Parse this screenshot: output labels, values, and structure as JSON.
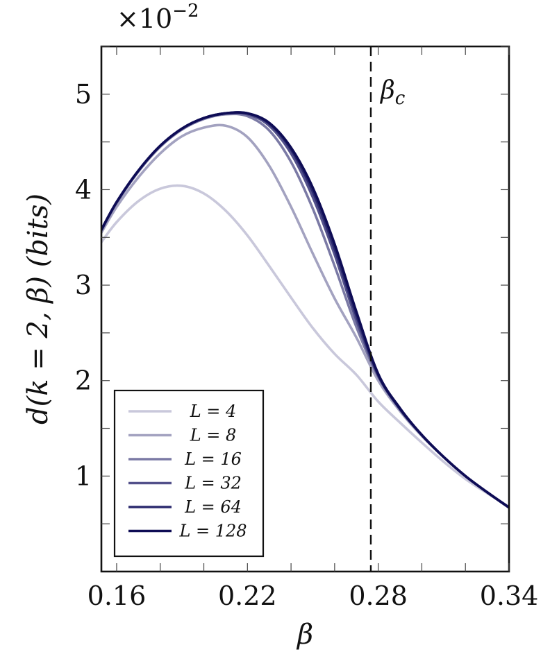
{
  "chart_data": {
    "type": "line",
    "xlabel": "β",
    "ylabel": "d(k = 2, β) (bits)",
    "y_multiplier": {
      "base": "×10",
      "exponent": "−2"
    },
    "xlim": [
      0.153,
      0.34
    ],
    "ylim": [
      0.0,
      5.5
    ],
    "x_ticks": [
      0.16,
      0.22,
      0.28,
      0.34
    ],
    "x_tick_labels": [
      "0.16",
      "0.22",
      "0.28",
      "0.34"
    ],
    "y_ticks": [
      1,
      2,
      3,
      4,
      5
    ],
    "y_tick_labels": [
      "1",
      "2",
      "3",
      "4",
      "5"
    ],
    "grid": false,
    "legend_position": "bottom-left",
    "annotation": {
      "text": "β",
      "subscript": "c",
      "x": 0.2766,
      "style": "dashed-vertical"
    },
    "series": [
      {
        "name": "L = 4",
        "color": "#c9c8db",
        "x": [
          0.153,
          0.16,
          0.17,
          0.18,
          0.19,
          0.2,
          0.21,
          0.22,
          0.23,
          0.24,
          0.25,
          0.26,
          0.27,
          0.28,
          0.29,
          0.3,
          0.31,
          0.32,
          0.33,
          0.34
        ],
        "y": [
          3.45,
          3.66,
          3.88,
          4.01,
          4.04,
          3.96,
          3.78,
          3.52,
          3.2,
          2.87,
          2.55,
          2.28,
          2.06,
          1.78,
          1.56,
          1.35,
          1.15,
          0.97,
          0.82,
          0.68
        ]
      },
      {
        "name": "L = 8",
        "color": "#a3a2c0",
        "x": [
          0.153,
          0.16,
          0.17,
          0.18,
          0.19,
          0.2,
          0.21,
          0.22,
          0.23,
          0.24,
          0.25,
          0.26,
          0.27,
          0.28,
          0.29,
          0.3,
          0.31,
          0.32,
          0.33,
          0.34
        ],
        "y": [
          3.55,
          3.82,
          4.13,
          4.38,
          4.56,
          4.65,
          4.67,
          4.55,
          4.25,
          3.82,
          3.33,
          2.86,
          2.45,
          2.0,
          1.68,
          1.42,
          1.2,
          1.0,
          0.83,
          0.67
        ]
      },
      {
        "name": "L = 16",
        "color": "#7b7aa5",
        "x": [
          0.153,
          0.16,
          0.17,
          0.18,
          0.19,
          0.2,
          0.21,
          0.22,
          0.23,
          0.24,
          0.25,
          0.26,
          0.27,
          0.28,
          0.29,
          0.3,
          0.31,
          0.32,
          0.33,
          0.34
        ],
        "y": [
          3.57,
          3.86,
          4.19,
          4.45,
          4.63,
          4.74,
          4.79,
          4.77,
          4.62,
          4.29,
          3.8,
          3.2,
          2.56,
          2.04,
          1.7,
          1.43,
          1.2,
          1.0,
          0.83,
          0.67
        ]
      },
      {
        "name": "L = 32",
        "color": "#52508a",
        "x": [
          0.153,
          0.16,
          0.17,
          0.18,
          0.19,
          0.2,
          0.21,
          0.22,
          0.23,
          0.24,
          0.25,
          0.26,
          0.27,
          0.28,
          0.29,
          0.3,
          0.31,
          0.32,
          0.33,
          0.34
        ],
        "y": [
          3.58,
          3.87,
          4.2,
          4.46,
          4.64,
          4.75,
          4.8,
          4.79,
          4.67,
          4.38,
          3.92,
          3.32,
          2.63,
          2.05,
          1.7,
          1.43,
          1.2,
          1.0,
          0.83,
          0.67
        ]
      },
      {
        "name": "L = 64",
        "color": "#2b2a6e",
        "x": [
          0.153,
          0.16,
          0.17,
          0.18,
          0.19,
          0.2,
          0.21,
          0.22,
          0.23,
          0.24,
          0.25,
          0.26,
          0.27,
          0.28,
          0.29,
          0.3,
          0.31,
          0.32,
          0.33,
          0.34
        ],
        "y": [
          3.58,
          3.87,
          4.2,
          4.46,
          4.64,
          4.75,
          4.8,
          4.8,
          4.69,
          4.42,
          3.98,
          3.38,
          2.68,
          2.06,
          1.7,
          1.43,
          1.2,
          1.0,
          0.83,
          0.67
        ]
      },
      {
        "name": "L = 128",
        "color": "#0e0c55",
        "x": [
          0.153,
          0.16,
          0.17,
          0.18,
          0.19,
          0.2,
          0.21,
          0.22,
          0.23,
          0.24,
          0.25,
          0.26,
          0.27,
          0.28,
          0.29,
          0.3,
          0.31,
          0.32,
          0.33,
          0.34
        ],
        "y": [
          3.58,
          3.87,
          4.2,
          4.46,
          4.64,
          4.75,
          4.8,
          4.8,
          4.7,
          4.44,
          4.02,
          3.43,
          2.72,
          2.07,
          1.71,
          1.43,
          1.2,
          1.0,
          0.83,
          0.67
        ]
      }
    ]
  }
}
